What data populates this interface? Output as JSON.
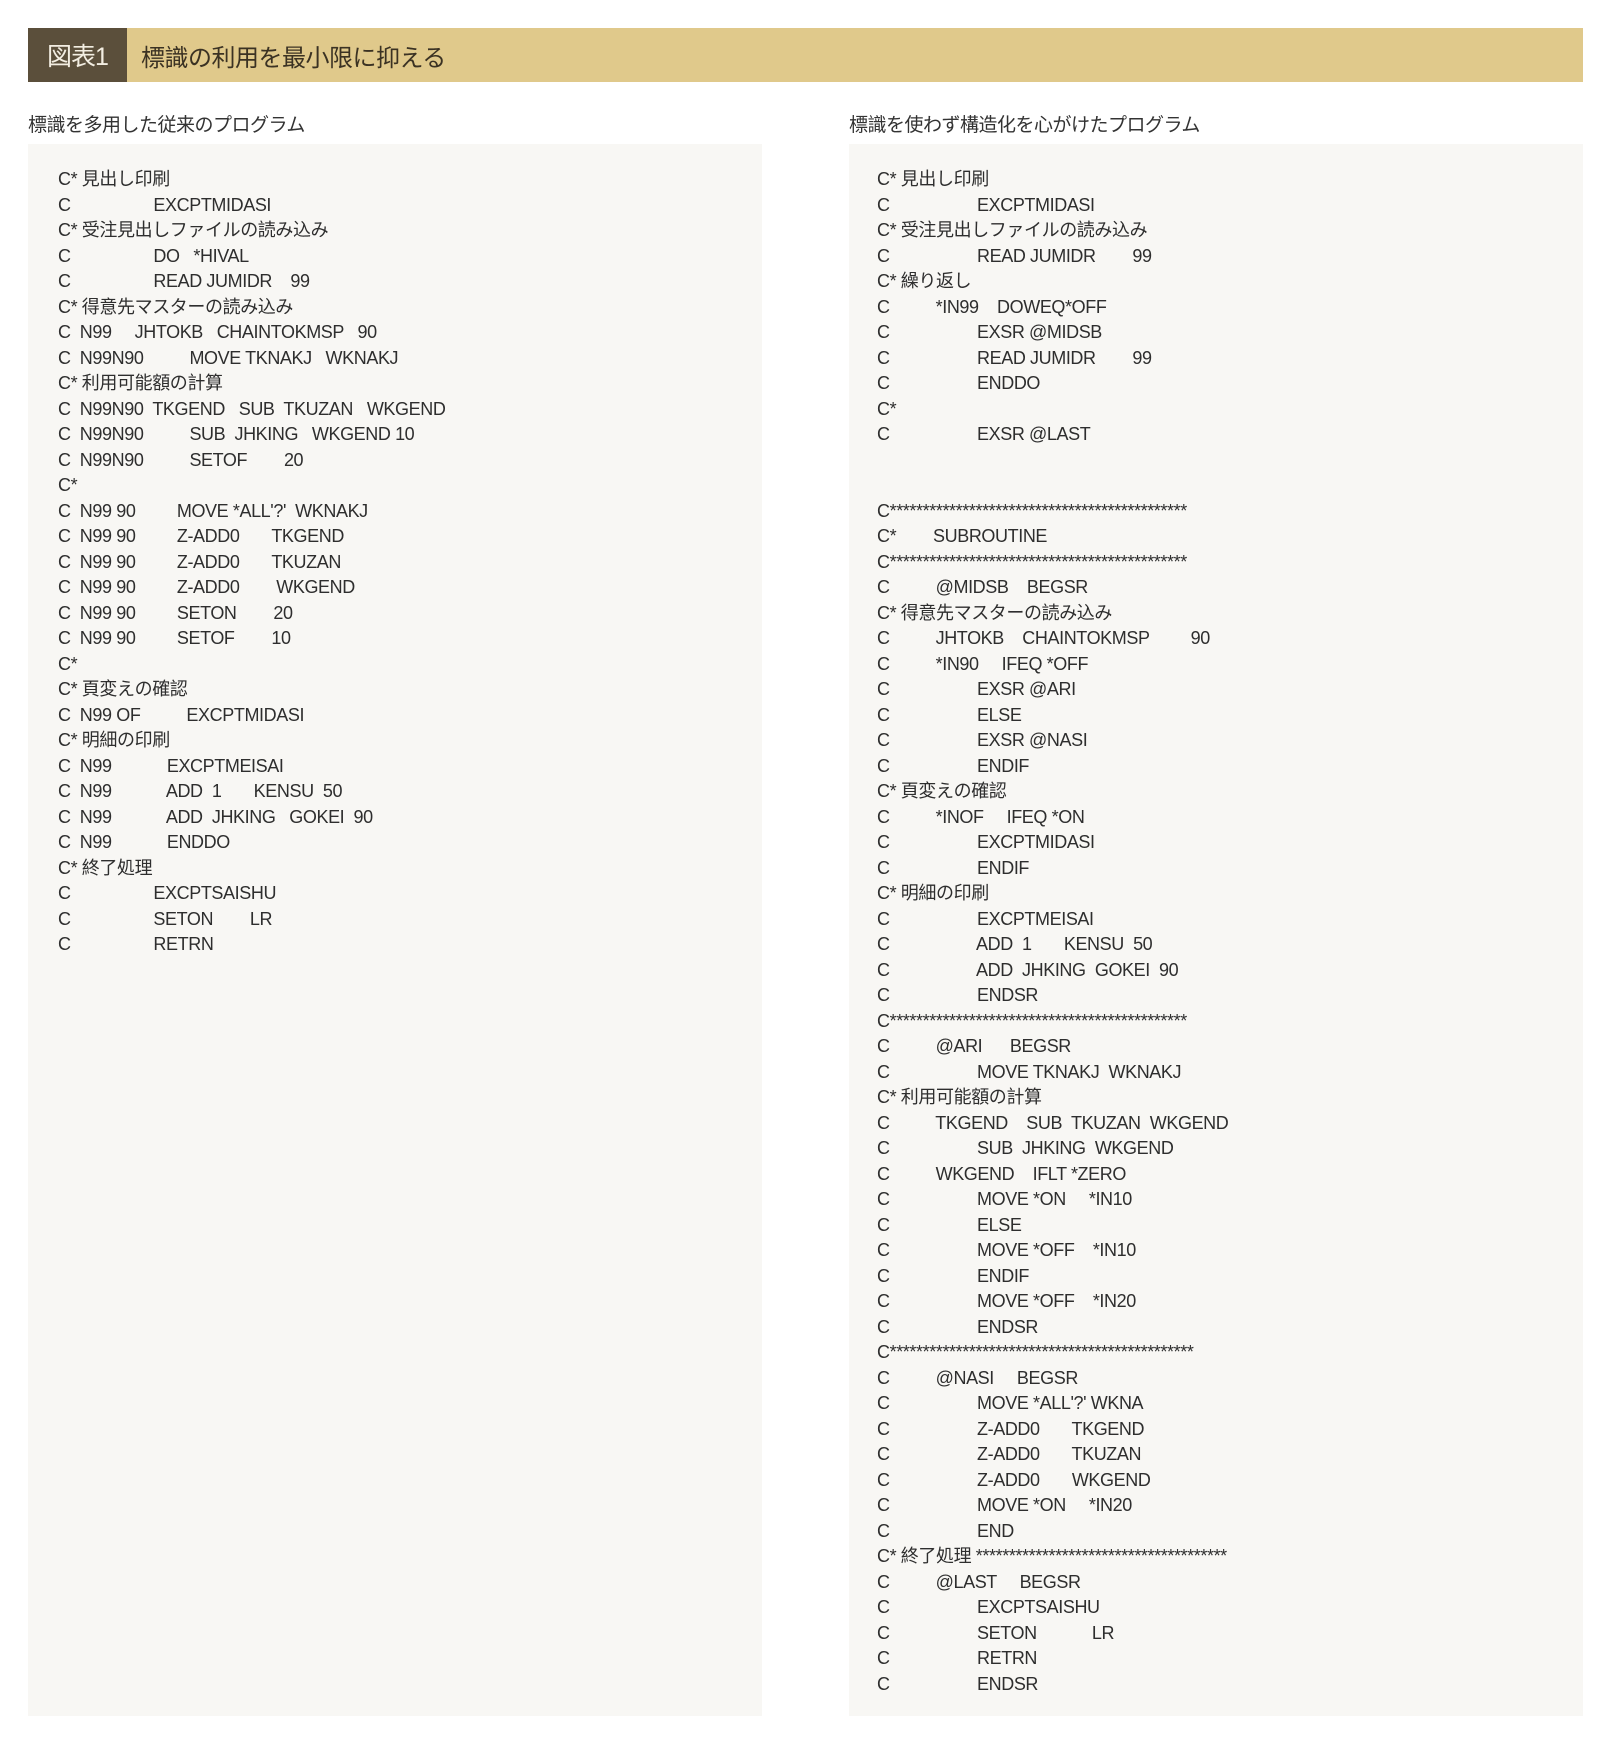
{
  "header": {
    "number": "図表1",
    "title": "標識の利用を最小限に抑える"
  },
  "colors": {
    "header_dark": "#5b4f3b",
    "header_gold": "#e0c98b",
    "panel_bg": "#f8f7f4"
  },
  "left": {
    "title": "標識を多用した従来のプログラム",
    "lines": [
      "C* 見出し印刷",
      "C                  EXCPTMIDASI",
      "C* 受注見出しファイルの読み込み",
      "C                  DO   *HIVAL",
      "C                  READ JUMIDR    99",
      "C* 得意先マスターの読み込み",
      "C  N99     JHTOKB   CHAINTOKMSP   90",
      "C  N99N90          MOVE TKNAKJ   WKNAKJ",
      "C* 利用可能額の計算",
      "C  N99N90  TKGEND   SUB  TKUZAN   WKGEND",
      "C  N99N90          SUB  JHKING   WKGEND 10",
      "C  N99N90          SETOF        20",
      "C*",
      "C  N99 90         MOVE *ALL'?'  WKNAKJ",
      "C  N99 90         Z-ADD0       TKGEND",
      "C  N99 90         Z-ADD0       TKUZAN",
      "C  N99 90         Z-ADD0        WKGEND",
      "C  N99 90         SETON        20",
      "C  N99 90         SETOF        10",
      "C*",
      "C* 頁変えの確認",
      "C  N99 OF          EXCPTMIDASI",
      "C* 明細の印刷",
      "C  N99            EXCPTMEISAI",
      "C  N99            ADD  1       KENSU  50",
      "C  N99            ADD  JHKING   GOKEI  90",
      "C  N99            ENDDO",
      "C* 終了処理",
      "C                  EXCPTSAISHU",
      "C                  SETON        LR",
      "C                  RETRN"
    ]
  },
  "right": {
    "title": "標識を使わず構造化を心がけたプログラム",
    "lines": [
      "C* 見出し印刷",
      "C                   EXCPTMIDASI",
      "C* 受注見出しファイルの読み込み",
      "C                   READ JUMIDR        99",
      "C* 繰り返し",
      "C          *IN99    DOWEQ*OFF",
      "C                   EXSR @MIDSB",
      "C                   READ JUMIDR        99",
      "C                   ENDDO",
      "C*",
      "C                   EXSR @LAST",
      "",
      "",
      "C*********************************************",
      "C*        SUBROUTINE",
      "C*********************************************",
      "C          @MIDSB    BEGSR",
      "C* 得意先マスターの読み込み",
      "C          JHTOKB    CHAINTOKMSP         90",
      "C          *IN90     IFEQ *OFF",
      "C                   EXSR @ARI",
      "C                   ELSE",
      "C                   EXSR @NASI",
      "C                   ENDIF",
      "C* 頁変えの確認",
      "C          *INOF     IFEQ *ON",
      "C                   EXCPTMIDASI",
      "C                   ENDIF",
      "C* 明細の印刷",
      "C                   EXCPTMEISAI",
      "C                   ADD  1       KENSU  50",
      "C                   ADD  JHKING  GOKEI  90",
      "C                   ENDSR",
      "C*********************************************",
      "C          @ARI      BEGSR",
      "C                   MOVE TKNAKJ  WKNAKJ",
      "C* 利用可能額の計算",
      "C          TKGEND    SUB  TKUZAN  WKGEND",
      "C                   SUB  JHKING  WKGEND",
      "C          WKGEND    IFLT *ZERO",
      "C                   MOVE *ON     *IN10",
      "C                   ELSE",
      "C                   MOVE *OFF    *IN10",
      "C                   ENDIF",
      "C                   MOVE *OFF    *IN20",
      "C                   ENDSR",
      "C**********************************************",
      "C          @NASI     BEGSR",
      "C                   MOVE *ALL'?' WKNA",
      "C                   Z-ADD0       TKGEND",
      "C                   Z-ADD0       TKUZAN",
      "C                   Z-ADD0       WKGEND",
      "C                   MOVE *ON     *IN20",
      "C                   END",
      "C* 終了処理 **************************************",
      "C          @LAST     BEGSR",
      "C                   EXCPTSAISHU",
      "C                   SETON            LR",
      "C                   RETRN",
      "C                   ENDSR"
    ]
  }
}
